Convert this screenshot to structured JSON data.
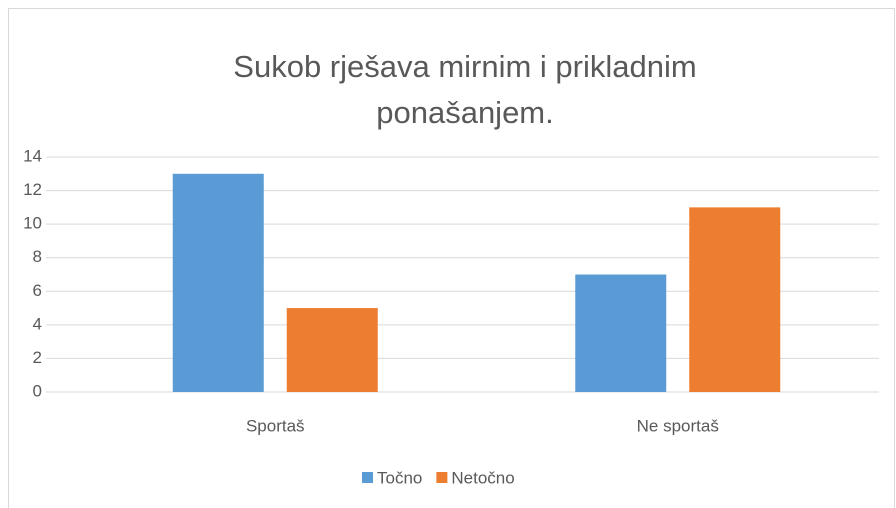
{
  "chart_data": {
    "type": "bar",
    "title": "Sukob rješava mirnim i prikladnim ponašanjem.",
    "categories": [
      "Sportaš",
      "Ne sportaš"
    ],
    "series": [
      {
        "name": "Točno",
        "color": "#5b9bd5",
        "values": [
          13,
          7
        ]
      },
      {
        "name": "Netočno",
        "color": "#ed7d31",
        "values": [
          5,
          11
        ]
      }
    ],
    "ylim": [
      0,
      14
    ],
    "yticks": [
      0,
      2,
      4,
      6,
      8,
      10,
      12,
      14
    ],
    "grid": true,
    "legend": "bottom"
  }
}
